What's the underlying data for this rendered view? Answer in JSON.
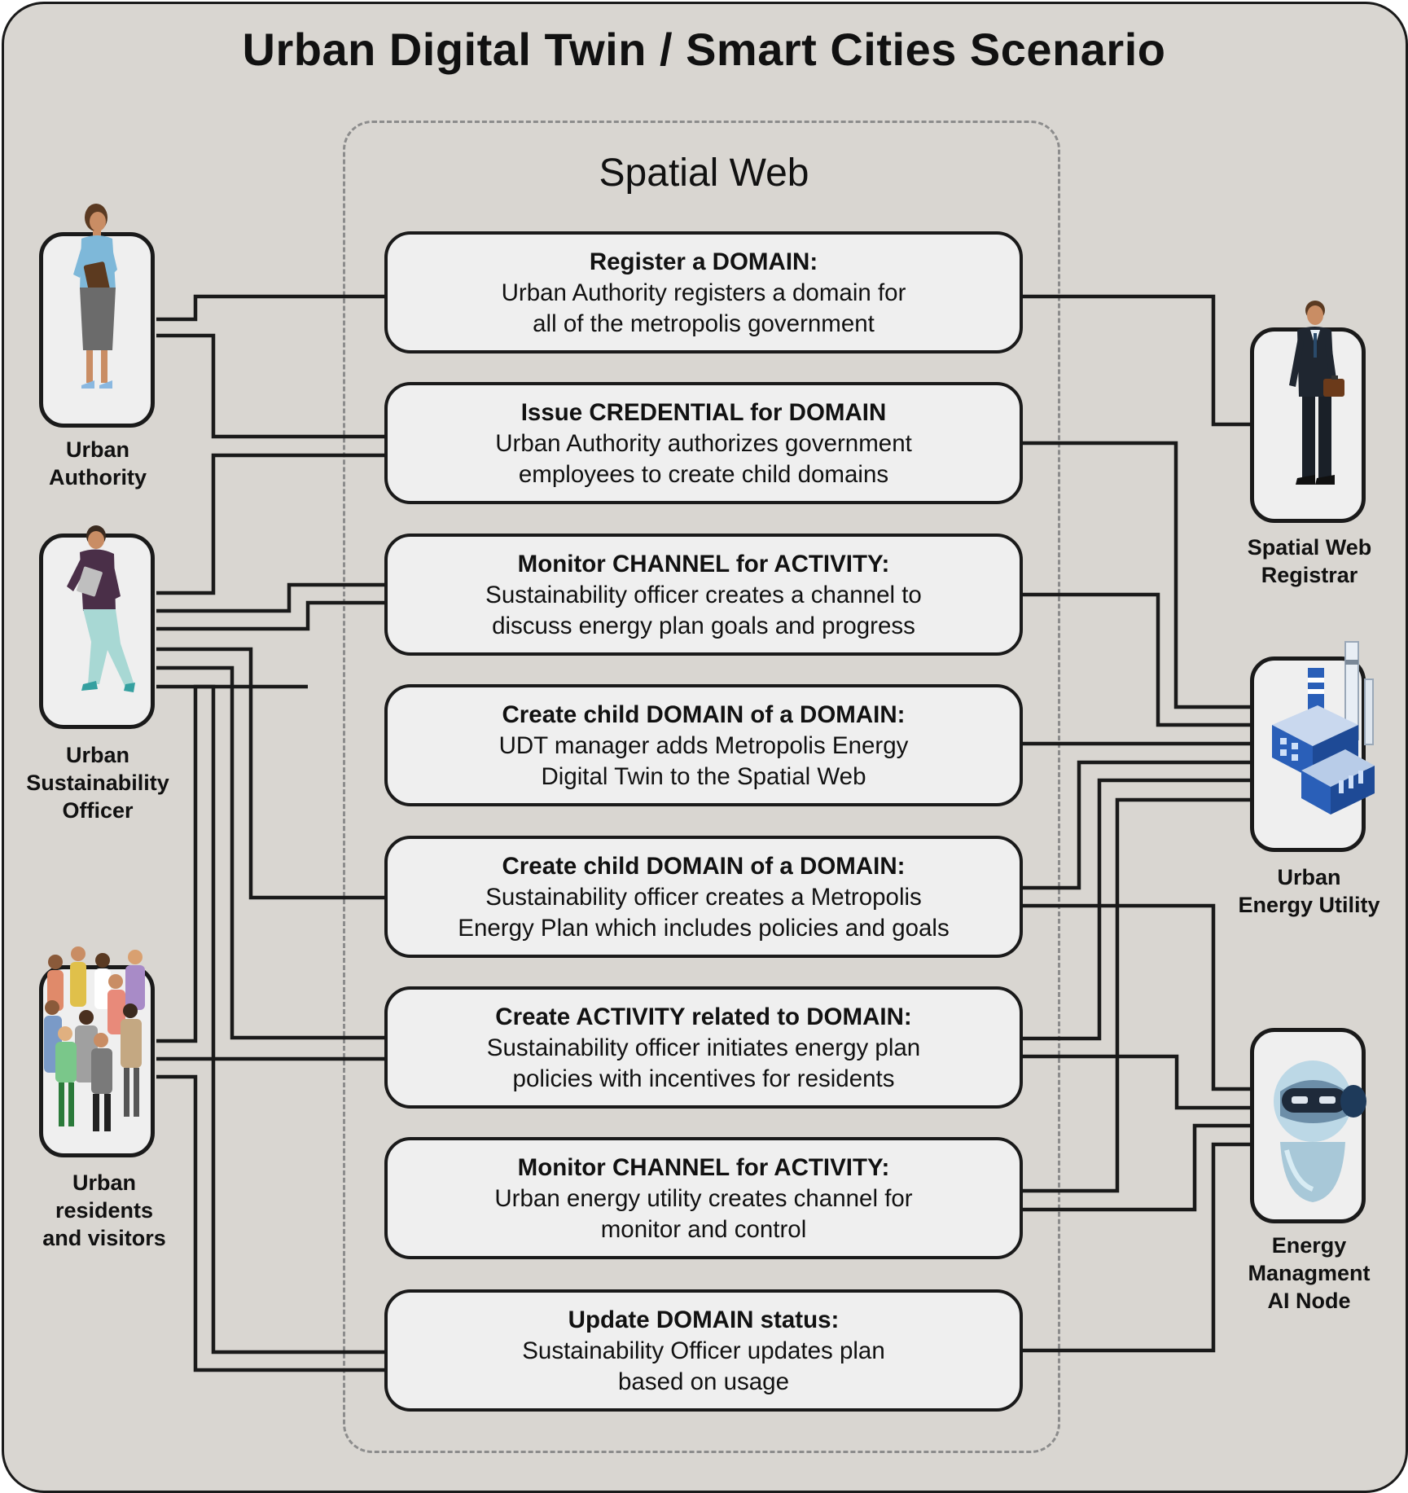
{
  "title": "Urban Digital Twin / Smart Cities Scenario",
  "region_label": "Spatial Web",
  "steps": [
    {
      "heading": "Register a DOMAIN:",
      "line1": "Urban Authority registers a domain for",
      "line2": "all of the metropolis government"
    },
    {
      "heading": "Issue CREDENTIAL for DOMAIN",
      "line1": "Urban Authority authorizes government",
      "line2": "employees to create child domains"
    },
    {
      "heading": "Monitor CHANNEL for ACTIVITY:",
      "line1": "Sustainability officer creates a channel to",
      "line2": "discuss energy plan goals and progress"
    },
    {
      "heading": "Create child DOMAIN of a DOMAIN:",
      "line1": "UDT manager adds Metropolis Energy",
      "line2": "Digital Twin to the Spatial Web"
    },
    {
      "heading": "Create child DOMAIN of a DOMAIN:",
      "line1": "Sustainability officer creates a Metropolis",
      "line2": "Energy Plan which includes policies and goals"
    },
    {
      "heading": "Create ACTIVITY related to DOMAIN:",
      "line1": "Sustainability officer initiates energy plan",
      "line2": "policies with incentives for residents"
    },
    {
      "heading": "Monitor CHANNEL for ACTIVITY:",
      "line1": "Urban energy utility creates channel for",
      "line2": "monitor and control"
    },
    {
      "heading": "Update DOMAIN status:",
      "line1": "Sustainability Officer updates plan",
      "line2": "based on usage"
    }
  ],
  "actors": {
    "urban_authority": {
      "line1": "Urban",
      "line2": "Authority",
      "icon": "businesswoman-icon"
    },
    "sustainability_officer": {
      "line1": "Urban",
      "line2": "Sustainability",
      "line3": "Officer",
      "icon": "walking-officer-icon"
    },
    "residents": {
      "line1": "Urban",
      "line2": "residents",
      "line3": "and visitors",
      "icon": "crowd-icon"
    },
    "registrar": {
      "line1": "Spatial Web",
      "line2": "Registrar",
      "icon": "businessman-icon"
    },
    "energy_utility": {
      "line1": "Urban",
      "line2": "Energy Utility",
      "icon": "power-plant-icon"
    },
    "ai_node": {
      "line1": "Energy",
      "line2": "Managment",
      "line3": "AI Node",
      "icon": "robot-icon"
    }
  },
  "colors": {
    "background": "#d9d6d1",
    "card": "#efefef",
    "line": "#1a1a1a",
    "dashed": "#8c8c8c"
  }
}
